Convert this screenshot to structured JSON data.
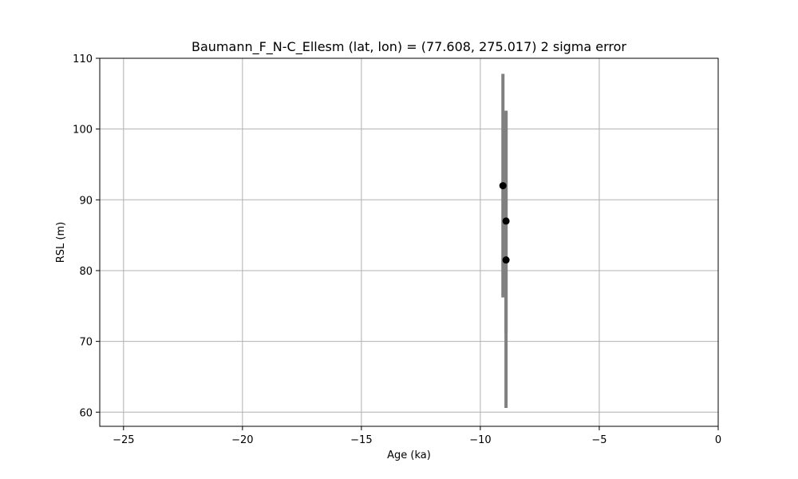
{
  "chart_data": {
    "type": "scatter",
    "title": "Baumann_F_N-C_Ellesm (lat, lon) = (77.608, 275.017)  2 sigma error",
    "xlabel": "Age (ka)",
    "ylabel": "RSL (m)",
    "xlim": [
      -26,
      0
    ],
    "ylim": [
      58,
      110
    ],
    "xticks": [
      -25,
      -20,
      -15,
      -10,
      -5,
      0
    ],
    "yticks": [
      60,
      70,
      80,
      90,
      100,
      110
    ],
    "grid": true,
    "points": [
      {
        "x": -9.05,
        "y": 92.0,
        "y_err_low": 76.2,
        "y_err_high": 107.8
      },
      {
        "x": -8.92,
        "y": 87.0,
        "y_err_low": 71.2,
        "y_err_high": 102.6
      },
      {
        "x": -8.92,
        "y": 81.5,
        "y_err_low": 60.6,
        "y_err_high": 102.4
      }
    ],
    "colors": {
      "point": "#000000",
      "errorbar": "#808080",
      "grid": "#b0b0b0"
    }
  }
}
